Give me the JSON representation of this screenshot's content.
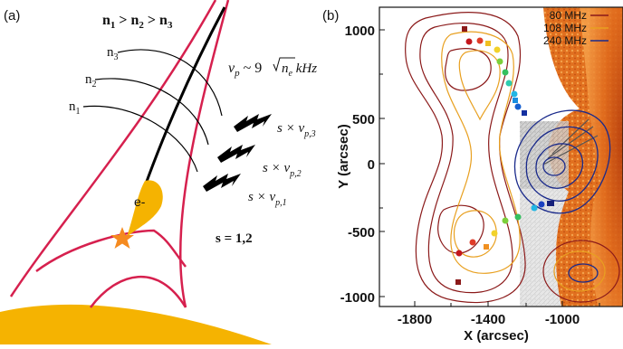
{
  "panel_a": {
    "label": "(a)",
    "order_prefix": "n",
    "order_sub": [
      "1",
      "2",
      "3"
    ],
    "order_sep": " > ",
    "layer_labels": [
      {
        "n": "n",
        "sub": "3"
      },
      {
        "n": "n",
        "sub": "2"
      },
      {
        "n": "n",
        "sub": "1"
      }
    ],
    "formula_lhs": "ν",
    "formula_lhs_sub": "p",
    "formula_mid": " ~ 9",
    "formula_root_inner": "n",
    "formula_root_sub": "e",
    "formula_unit": " kHz",
    "emission_labels": [
      {
        "prefix": "s × ν",
        "sub": "p,3"
      },
      {
        "prefix": "s × ν",
        "sub": "p,2"
      },
      {
        "prefix": "s × ν",
        "sub": "p,1"
      }
    ],
    "electron_label": "e-",
    "harmonic_label": "s = 1,2",
    "colors": {
      "loop": "#d6204e",
      "beam": "#000000",
      "sun": "#f5b301",
      "electron": "#f5b301",
      "star": "#f58a1f"
    }
  },
  "panel_b": {
    "label": "(b)",
    "xlabel": "X (arcsec)",
    "ylabel": "Y (arcsec)",
    "xticks": [
      "-1800",
      "-1400",
      "-1000"
    ],
    "yticks": [
      "1000",
      "500",
      "0",
      "-500",
      "-1000"
    ],
    "legend": [
      {
        "label": "80 MHz",
        "color": "#8b1a1a"
      },
      {
        "label": "108 MHz",
        "color": "#e8a020"
      },
      {
        "label": "240 MHz",
        "color": "#1a2a8b"
      }
    ]
  }
}
